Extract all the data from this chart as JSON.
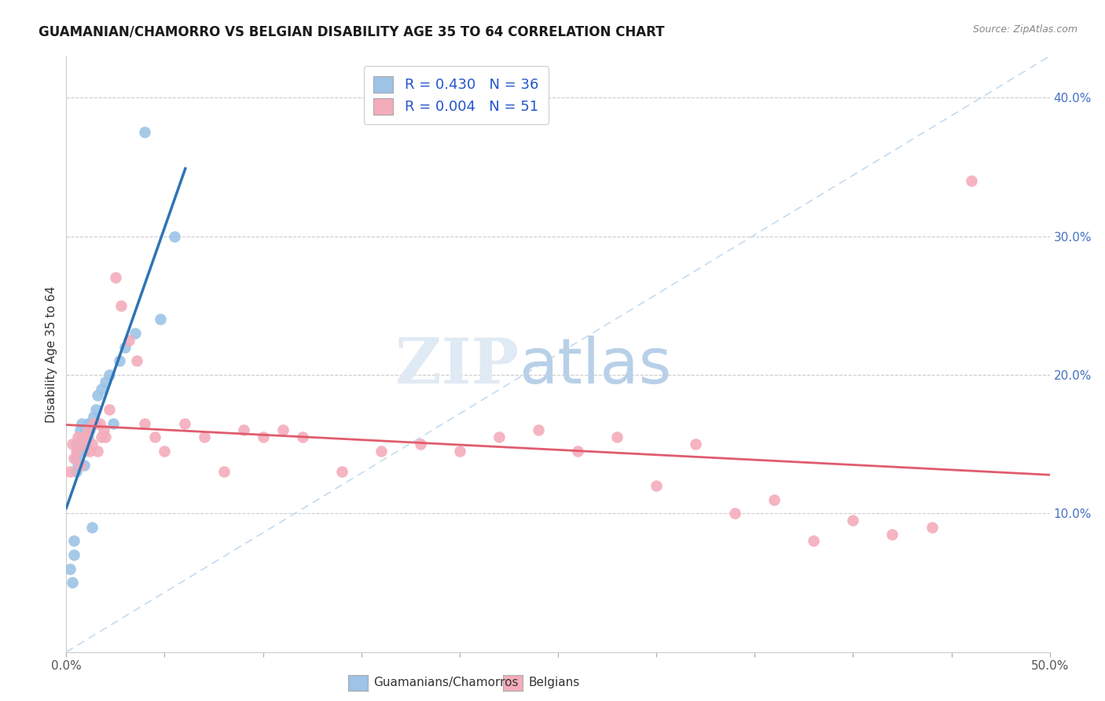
{
  "title": "GUAMANIAN/CHAMORRO VS BELGIAN DISABILITY AGE 35 TO 64 CORRELATION CHART",
  "source": "Source: ZipAtlas.com",
  "ylabel": "Disability Age 35 to 64",
  "xlim": [
    0.0,
    0.5
  ],
  "ylim": [
    0.0,
    0.43
  ],
  "xticks": [
    0.0,
    0.05,
    0.1,
    0.15,
    0.2,
    0.25,
    0.3,
    0.35,
    0.4,
    0.45,
    0.5
  ],
  "xticklabels": [
    "0.0%",
    "",
    "",
    "",
    "",
    "",
    "",
    "",
    "",
    "",
    "50.0%"
  ],
  "yticks_right": [
    0.1,
    0.2,
    0.3,
    0.4
  ],
  "yticklabels_right": [
    "10.0%",
    "20.0%",
    "30.0%",
    "40.0%"
  ],
  "blue_color": "#9DC3E6",
  "pink_color": "#F4ACBB",
  "blue_line_color": "#2E74B5",
  "pink_line_color": "#E05C6E",
  "diagonal_color": "#BDD7EE",
  "legend_label1": "Guamanians/Chamorros",
  "legend_label2": "Belgians",
  "guamanian_x": [
    0.002,
    0.003,
    0.004,
    0.004,
    0.005,
    0.005,
    0.005,
    0.006,
    0.006,
    0.007,
    0.007,
    0.008,
    0.008,
    0.009,
    0.009,
    0.009,
    0.01,
    0.01,
    0.011,
    0.011,
    0.012,
    0.012,
    0.013,
    0.014,
    0.015,
    0.016,
    0.018,
    0.02,
    0.022,
    0.024,
    0.027,
    0.03,
    0.035,
    0.04,
    0.048,
    0.055
  ],
  "guamanian_y": [
    0.06,
    0.05,
    0.07,
    0.08,
    0.13,
    0.14,
    0.15,
    0.135,
    0.145,
    0.15,
    0.16,
    0.155,
    0.165,
    0.135,
    0.145,
    0.155,
    0.15,
    0.16,
    0.155,
    0.165,
    0.16,
    0.165,
    0.09,
    0.17,
    0.175,
    0.185,
    0.19,
    0.195,
    0.2,
    0.165,
    0.21,
    0.22,
    0.23,
    0.375,
    0.24,
    0.3
  ],
  "belgian_x": [
    0.002,
    0.003,
    0.004,
    0.005,
    0.006,
    0.007,
    0.008,
    0.009,
    0.01,
    0.011,
    0.012,
    0.013,
    0.014,
    0.015,
    0.016,
    0.017,
    0.018,
    0.019,
    0.02,
    0.022,
    0.025,
    0.028,
    0.032,
    0.036,
    0.04,
    0.045,
    0.05,
    0.06,
    0.07,
    0.08,
    0.09,
    0.1,
    0.11,
    0.12,
    0.14,
    0.16,
    0.18,
    0.2,
    0.22,
    0.24,
    0.26,
    0.28,
    0.3,
    0.32,
    0.34,
    0.36,
    0.38,
    0.4,
    0.42,
    0.44,
    0.46
  ],
  "belgian_y": [
    0.13,
    0.15,
    0.14,
    0.145,
    0.155,
    0.135,
    0.15,
    0.155,
    0.155,
    0.16,
    0.145,
    0.15,
    0.165,
    0.165,
    0.145,
    0.165,
    0.155,
    0.16,
    0.155,
    0.175,
    0.27,
    0.25,
    0.225,
    0.21,
    0.165,
    0.155,
    0.145,
    0.165,
    0.155,
    0.13,
    0.16,
    0.155,
    0.16,
    0.155,
    0.13,
    0.145,
    0.15,
    0.145,
    0.155,
    0.16,
    0.145,
    0.155,
    0.12,
    0.15,
    0.1,
    0.11,
    0.08,
    0.095,
    0.085,
    0.09,
    0.34
  ]
}
